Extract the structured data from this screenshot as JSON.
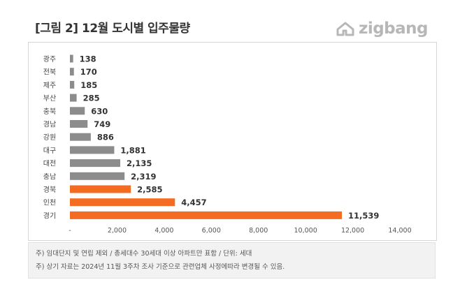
{
  "title": "[그림 2] 12월 도시별 입주물량",
  "logo_text": "zigbang",
  "notes": [
    "주) 임대단지 및 연립 제외 / 총세대수 30세대 이상 아파트만 표함 / 단위: 세대",
    "주) 상기 자료는 2024년 11월 3주차 조사 기준으로 관련업체 사정에따라 변경될 수 있음."
  ],
  "colors": {
    "gray": "#8c8c8c",
    "orange": "#f36c21"
  },
  "chart_data": {
    "type": "bar",
    "orientation": "horizontal",
    "categories": [
      "광주",
      "전북",
      "제주",
      "부산",
      "충북",
      "경남",
      "강원",
      "대구",
      "대전",
      "충남",
      "경북",
      "인천",
      "경기"
    ],
    "values": [
      138,
      170,
      185,
      285,
      630,
      749,
      886,
      1881,
      2135,
      2319,
      2585,
      4457,
      11539
    ],
    "value_labels": [
      "138",
      "170",
      "185",
      "285",
      "630",
      "749",
      "886",
      "1,881",
      "2,135",
      "2,319",
      "2,585",
      "4,457",
      "11,539"
    ],
    "highlight": [
      false,
      false,
      false,
      false,
      false,
      false,
      false,
      false,
      false,
      false,
      true,
      true,
      true
    ],
    "xlim": [
      0,
      14000
    ],
    "xticks": [
      0,
      2000,
      4000,
      6000,
      8000,
      10000,
      12000,
      14000
    ],
    "xtick_labels": [
      "-",
      "2,000",
      "4,000",
      "6,000",
      "8,000",
      "10,000",
      "12,000",
      "14,000"
    ],
    "grid": false,
    "legend": "none"
  }
}
